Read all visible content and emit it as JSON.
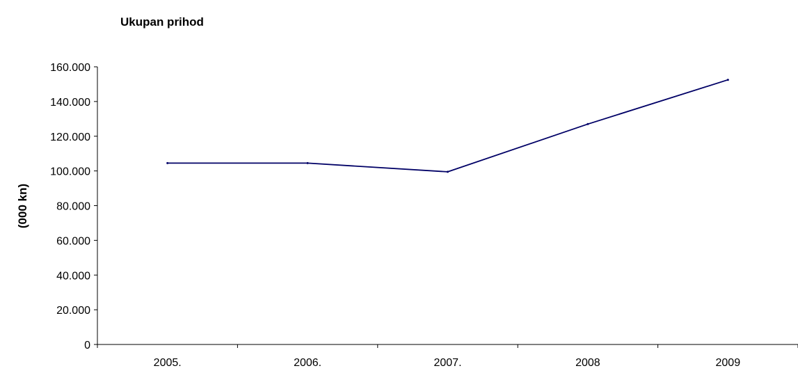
{
  "chart_data": {
    "type": "line",
    "title": "Ukupan prihod",
    "xlabel": "",
    "ylabel": "(000 kn)",
    "categories": [
      "2005.",
      "2006.",
      "2007.",
      "2008",
      "2009"
    ],
    "y_ticks": [
      "0",
      "20.000",
      "40.000",
      "60.000",
      "80.000",
      "100.000",
      "120.000",
      "140.000",
      "160.000"
    ],
    "ylim": [
      0,
      160000
    ],
    "grid": false,
    "legend": "none",
    "series": [
      {
        "values": [
          104500,
          104500,
          99500,
          127000,
          152500
        ],
        "color": "#000066"
      }
    ]
  }
}
